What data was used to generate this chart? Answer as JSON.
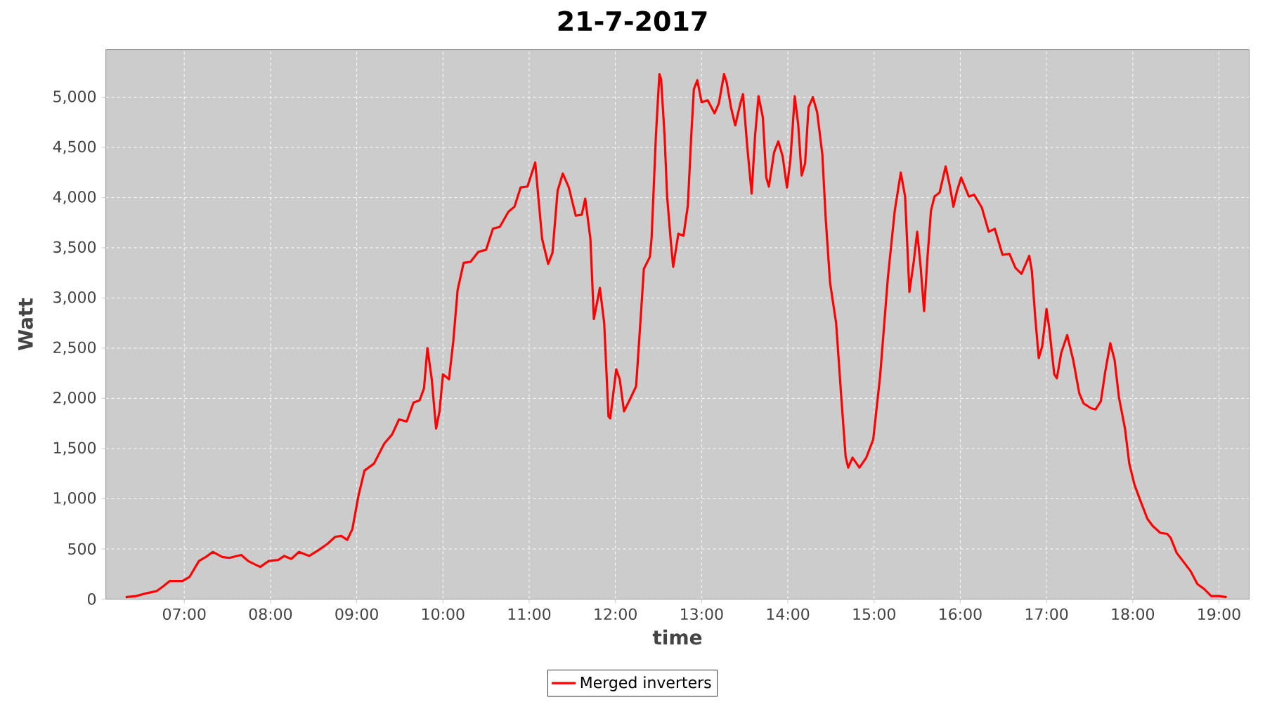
{
  "chart_data": {
    "type": "line",
    "title": "21-7-2017",
    "xlabel": "time",
    "ylabel": "Watt",
    "x": [
      6.32,
      6.44,
      6.57,
      6.68,
      6.76,
      6.83,
      6.98,
      7.06,
      7.17,
      7.25,
      7.33,
      7.44,
      7.52,
      7.66,
      7.74,
      7.88,
      7.98,
      8.09,
      8.16,
      8.24,
      8.33,
      8.45,
      8.56,
      8.66,
      8.75,
      8.82,
      8.89,
      8.95,
      9.02,
      9.09,
      9.2,
      9.32,
      9.41,
      9.49,
      9.58,
      9.66,
      9.73,
      9.78,
      9.82,
      9.87,
      9.92,
      9.96,
      10.0,
      10.07,
      10.12,
      10.17,
      10.24,
      10.32,
      10.41,
      10.5,
      10.58,
      10.66,
      10.76,
      10.83,
      10.9,
      10.98,
      11.07,
      11.15,
      11.22,
      11.27,
      11.33,
      11.39,
      11.46,
      11.54,
      11.61,
      11.65,
      11.71,
      11.75,
      11.82,
      11.87,
      11.92,
      11.94,
      12.01,
      12.05,
      12.1,
      12.18,
      12.24,
      12.3,
      12.33,
      12.4,
      12.42,
      12.47,
      12.51,
      12.53,
      12.57,
      12.6,
      12.64,
      12.67,
      12.73,
      12.79,
      12.84,
      12.88,
      12.91,
      12.95,
      13.0,
      13.07,
      13.15,
      13.2,
      13.26,
      13.29,
      13.34,
      13.39,
      13.45,
      13.48,
      13.53,
      13.58,
      13.62,
      13.66,
      13.71,
      13.75,
      13.78,
      13.84,
      13.89,
      13.94,
      13.99,
      14.03,
      14.08,
      14.12,
      14.16,
      14.2,
      14.24,
      14.29,
      14.34,
      14.4,
      14.44,
      14.49,
      14.56,
      14.62,
      14.67,
      14.7,
      14.75,
      14.83,
      14.91,
      14.99,
      15.07,
      15.16,
      15.24,
      15.31,
      15.36,
      15.41,
      15.46,
      15.5,
      15.54,
      15.58,
      15.62,
      15.66,
      15.7,
      15.76,
      15.83,
      15.88,
      15.92,
      15.96,
      16.01,
      16.1,
      16.16,
      16.25,
      16.33,
      16.4,
      16.49,
      16.57,
      16.64,
      16.71,
      16.8,
      16.83,
      16.87,
      16.91,
      16.95,
      17.0,
      17.03,
      17.09,
      17.12,
      17.17,
      17.24,
      17.31,
      17.38,
      17.43,
      17.52,
      17.57,
      17.63,
      17.68,
      17.74,
      17.79,
      17.84,
      17.91,
      17.96,
      18.02,
      18.08,
      18.17,
      18.23,
      18.32,
      18.4,
      18.44,
      18.51,
      18.59,
      18.67,
      18.75,
      18.83,
      18.91,
      19.0,
      19.09
    ],
    "series": [
      {
        "name": "Merged inverters",
        "color": "#ff0000",
        "values": [
          20,
          30,
          60,
          80,
          130,
          180,
          180,
          220,
          380,
          420,
          470,
          420,
          410,
          440,
          380,
          320,
          380,
          390,
          430,
          400,
          470,
          430,
          490,
          550,
          620,
          630,
          590,
          700,
          1030,
          1280,
          1350,
          1550,
          1640,
          1790,
          1770,
          1960,
          1980,
          2100,
          2500,
          2190,
          1700,
          1870,
          2240,
          2190,
          2570,
          3080,
          3350,
          3360,
          3460,
          3480,
          3690,
          3710,
          3860,
          3910,
          4100,
          4110,
          4350,
          3590,
          3340,
          3450,
          4070,
          4240,
          4100,
          3820,
          3830,
          3990,
          3590,
          2790,
          3100,
          2750,
          1820,
          1800,
          2290,
          2190,
          1870,
          2010,
          2120,
          2890,
          3290,
          3410,
          3600,
          4620,
          5230,
          5180,
          4620,
          4010,
          3590,
          3310,
          3640,
          3620,
          3920,
          4620,
          5080,
          5170,
          4950,
          4970,
          4840,
          4940,
          5230,
          5150,
          4900,
          4720,
          4940,
          5030,
          4500,
          4040,
          4620,
          5010,
          4800,
          4200,
          4110,
          4450,
          4560,
          4410,
          4100,
          4380,
          5010,
          4730,
          4220,
          4340,
          4900,
          5000,
          4850,
          4430,
          3780,
          3150,
          2750,
          2010,
          1420,
          1310,
          1410,
          1310,
          1410,
          1590,
          2220,
          3200,
          3870,
          4250,
          4010,
          3060,
          3360,
          3660,
          3310,
          2870,
          3410,
          3870,
          4010,
          4050,
          4310,
          4110,
          3910,
          4060,
          4200,
          4010,
          4030,
          3900,
          3660,
          3690,
          3430,
          3440,
          3300,
          3240,
          3420,
          3270,
          2800,
          2400,
          2520,
          2890,
          2710,
          2240,
          2200,
          2450,
          2630,
          2380,
          2050,
          1950,
          1900,
          1890,
          1970,
          2260,
          2550,
          2380,
          2010,
          1700,
          1350,
          1140,
          1000,
          800,
          730,
          660,
          650,
          610,
          460,
          370,
          280,
          150,
          100,
          30,
          30,
          20
        ]
      }
    ],
    "xlim": [
      6.09,
      19.35
    ],
    "ylim": [
      0,
      5475
    ],
    "xticks": [
      {
        "value": 7,
        "label": "07:00"
      },
      {
        "value": 8,
        "label": "08:00"
      },
      {
        "value": 9,
        "label": "09:00"
      },
      {
        "value": 10,
        "label": "10:00"
      },
      {
        "value": 11,
        "label": "11:00"
      },
      {
        "value": 12,
        "label": "12:00"
      },
      {
        "value": 13,
        "label": "13:00"
      },
      {
        "value": 14,
        "label": "14:00"
      },
      {
        "value": 15,
        "label": "15:00"
      },
      {
        "value": 16,
        "label": "16:00"
      },
      {
        "value": 17,
        "label": "17:00"
      },
      {
        "value": 18,
        "label": "18:00"
      },
      {
        "value": 19,
        "label": "19:00"
      }
    ],
    "yticks": [
      0,
      500,
      {
        "value": 1000,
        "label": "1,000"
      },
      {
        "value": 1500,
        "label": "1,500"
      },
      {
        "value": 2000,
        "label": "2,000"
      },
      {
        "value": 2500,
        "label": "2,500"
      },
      {
        "value": 3000,
        "label": "3,000"
      },
      {
        "value": 3500,
        "label": "3,500"
      },
      {
        "value": 4000,
        "label": "4,000"
      },
      {
        "value": 4500,
        "label": "4,500"
      },
      {
        "value": 5000,
        "label": "5,000"
      }
    ],
    "grid": true,
    "legend": "bottom"
  }
}
